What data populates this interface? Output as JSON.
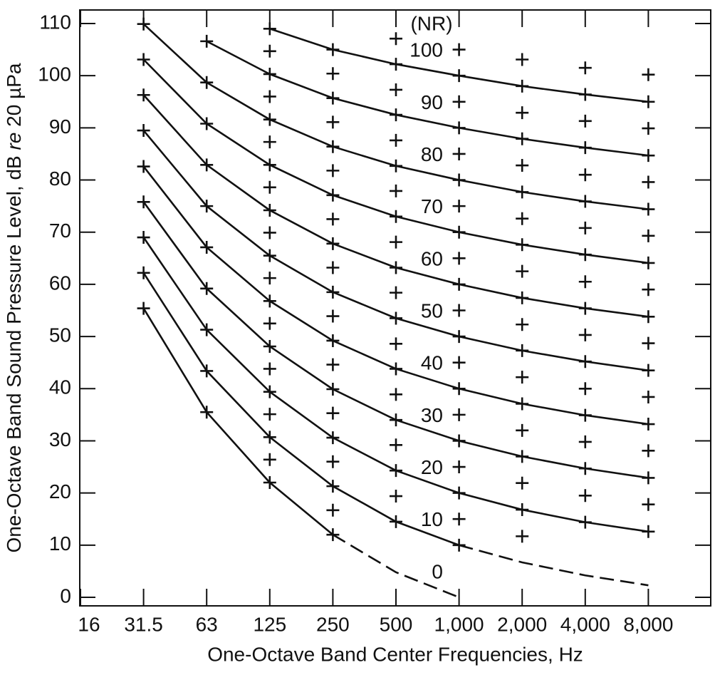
{
  "chart_data": {
    "type": "line",
    "xlabel": "One-Octave Band Center Frequencies, Hz",
    "ylabel": [
      "One-Octave Band Sound Pressure Level, dB ",
      "re",
      " 20 µPa"
    ],
    "curve_label_title": "(NR)",
    "categories": [
      "16",
      "31.5",
      "63",
      "125",
      "250",
      "500",
      "1,000",
      "2,000",
      "4,000",
      "8,000"
    ],
    "ylim": [
      0,
      110
    ],
    "yticks": [
      0,
      10,
      20,
      30,
      40,
      50,
      60,
      70,
      80,
      90,
      100,
      110
    ],
    "color": "#111111",
    "series": [
      {
        "name": "100",
        "line_style": "solid",
        "values": [
          null,
          null,
          null,
          109.0,
          105.0,
          102.2,
          100,
          98.0,
          96.4,
          95.0
        ]
      },
      {
        "name": "90",
        "line_style": "solid",
        "values": [
          null,
          null,
          106.6,
          100.3,
          95.7,
          92.5,
          90,
          87.9,
          86.2,
          84.7
        ]
      },
      {
        "name": "80",
        "line_style": "solid",
        "values": [
          null,
          109.9,
          98.7,
          91.6,
          86.4,
          82.7,
          80,
          77.7,
          75.9,
          74.4
        ]
      },
      {
        "name": "70",
        "line_style": "solid",
        "values": [
          null,
          103.1,
          90.8,
          82.9,
          77.1,
          73.0,
          70,
          67.6,
          65.7,
          64.1
        ]
      },
      {
        "name": "60",
        "line_style": "solid",
        "values": [
          null,
          96.3,
          82.9,
          74.2,
          67.8,
          63.2,
          60,
          57.4,
          55.4,
          53.8
        ]
      },
      {
        "name": "50",
        "line_style": "solid",
        "values": [
          null,
          89.5,
          75.0,
          65.5,
          58.5,
          53.5,
          50,
          47.3,
          45.2,
          43.5
        ]
      },
      {
        "name": "40",
        "line_style": "solid",
        "values": [
          null,
          82.6,
          67.1,
          56.8,
          49.2,
          43.8,
          40,
          37.1,
          34.9,
          33.2
        ]
      },
      {
        "name": "30",
        "line_style": "solid",
        "values": [
          null,
          75.8,
          59.2,
          48.1,
          39.9,
          34.0,
          30,
          27.0,
          24.7,
          22.9
        ]
      },
      {
        "name": "20",
        "line_style": "solid",
        "values": [
          null,
          69.0,
          51.3,
          39.4,
          30.6,
          24.3,
          20,
          16.8,
          14.4,
          12.6
        ]
      },
      {
        "name": "10",
        "line_style": "solid",
        "values": [
          null,
          62.2,
          43.4,
          30.7,
          21.3,
          14.5,
          10,
          null,
          null,
          null
        ]
      },
      {
        "line_style": "dashed",
        "values": [
          null,
          null,
          null,
          null,
          null,
          null,
          10,
          6.7,
          4.2,
          2.3
        ]
      },
      {
        "name": "0",
        "line_style": "solid",
        "values": [
          null,
          55.4,
          35.5,
          22.0,
          12.0,
          null,
          null,
          null,
          null,
          null
        ]
      },
      {
        "line_style": "dashed",
        "values": [
          null,
          null,
          null,
          null,
          12.0,
          4.8,
          0,
          null,
          null,
          null
        ]
      }
    ],
    "markers": [
      [],
      [
        55.4,
        62.2,
        69.0,
        75.8,
        82.6,
        89.5,
        96.3,
        103.1,
        109.9
      ],
      [
        35.5,
        43.4,
        51.3,
        59.2,
        67.1,
        75.0,
        82.9,
        90.8,
        98.7,
        106.6
      ],
      [
        22.0,
        26.4,
        30.7,
        35.1,
        39.4,
        43.8,
        48.1,
        52.5,
        56.8,
        61.2,
        65.5,
        69.9,
        74.2,
        78.6,
        82.9,
        87.3,
        91.6,
        96.0,
        100.3,
        104.7,
        109.0
      ],
      [
        12.0,
        16.7,
        21.3,
        26.0,
        30.6,
        35.3,
        39.9,
        44.6,
        49.2,
        53.9,
        58.5,
        63.2,
        67.8,
        72.5,
        77.1,
        81.8,
        86.4,
        91.1,
        95.7,
        100.4,
        105.0
      ],
      [
        14.5,
        19.4,
        24.3,
        29.2,
        34.0,
        38.9,
        43.8,
        48.6,
        53.5,
        58.4,
        63.2,
        68.1,
        73.0,
        77.9,
        82.7,
        87.6,
        92.5,
        97.3,
        102.2,
        107.1
      ],
      [
        10,
        15,
        20,
        25,
        30,
        35,
        40,
        45,
        50,
        55,
        60,
        65,
        70,
        75,
        80,
        85,
        90,
        95,
        100,
        105
      ],
      [
        11.7,
        16.8,
        21.9,
        27.0,
        32.0,
        37.1,
        42.2,
        47.3,
        52.3,
        57.4,
        62.5,
        67.6,
        72.6,
        77.7,
        82.8,
        87.9,
        92.9,
        98.0,
        103.1
      ],
      [
        14.4,
        19.5,
        24.7,
        29.8,
        34.9,
        40.0,
        45.2,
        50.3,
        55.4,
        60.5,
        65.7,
        70.8,
        75.9,
        81.0,
        86.2,
        91.3,
        96.4,
        101.5
      ],
      [
        12.6,
        17.8,
        22.9,
        28.1,
        33.2,
        38.4,
        43.5,
        48.7,
        53.8,
        59.0,
        64.1,
        69.3,
        74.4,
        79.6,
        84.7,
        89.9,
        95.0,
        100.2
      ]
    ]
  }
}
